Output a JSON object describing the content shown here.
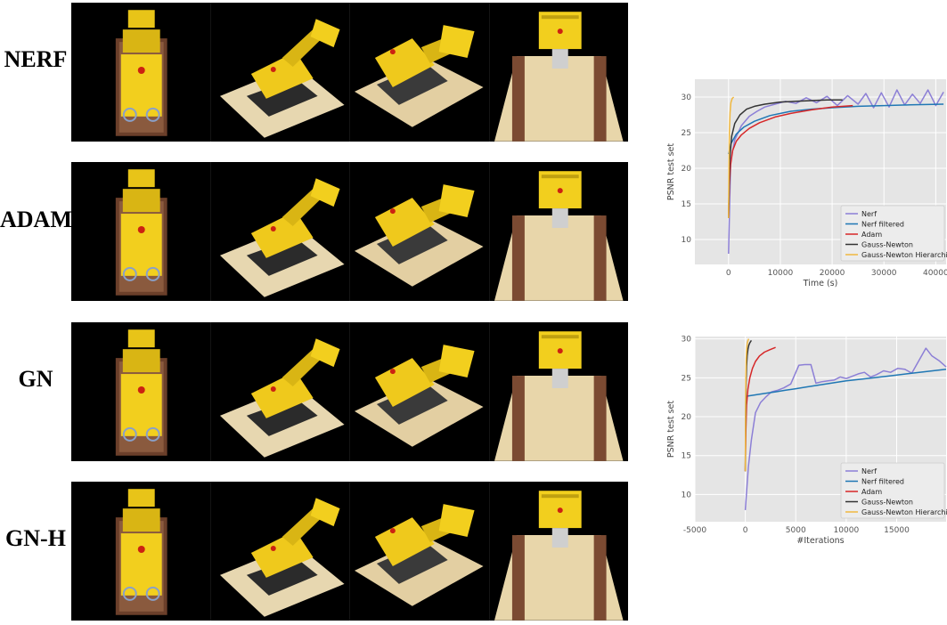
{
  "rows": [
    {
      "label": "NERF"
    },
    {
      "label": "ADAM"
    },
    {
      "label": "GN"
    },
    {
      "label": "GN-H"
    }
  ],
  "colors": {
    "nerf": "#8c7fd6",
    "nerf_filtered": "#1f77b4",
    "adam": "#d62728",
    "gauss_newton": "#333333",
    "gauss_newton_hier": "#f0b840",
    "plot_bg": "#e5e5e5"
  },
  "chart_data": [
    {
      "type": "line",
      "xlabel": "Time (s)",
      "ylabel": "PSNR test set",
      "xlim": [
        -6500,
        42000
      ],
      "ylim": [
        6.5,
        32.5
      ],
      "xticks": [
        0,
        10000,
        20000,
        30000,
        40000
      ],
      "yticks": [
        10,
        15,
        20,
        25,
        30
      ],
      "grid": true,
      "legend_position": "bottom-right",
      "series": [
        {
          "name": "Nerf",
          "color_key": "nerf",
          "x": [
            0,
            400,
            1200,
            2500,
            4000,
            5500,
            7000,
            9000,
            11000,
            13000,
            15000,
            17000,
            19000,
            21000,
            23000,
            25000,
            26500,
            28000,
            29500,
            31000,
            32500,
            34000,
            35500,
            37000,
            38500,
            40000,
            41500
          ],
          "y": [
            8,
            21,
            24,
            26,
            27.3,
            28,
            28.6,
            29,
            29.4,
            29.1,
            29.9,
            29.2,
            30.1,
            28.8,
            30.2,
            29,
            30.5,
            28.5,
            30.6,
            28.6,
            31,
            28.9,
            30.4,
            29.1,
            31,
            28.8,
            30.7
          ]
        },
        {
          "name": "Nerf filtered",
          "color_key": "nerf_filtered",
          "x": [
            0,
            500,
            1500,
            3000,
            5000,
            8000,
            12000,
            16000,
            20000,
            25000,
            30000,
            35000,
            41500
          ],
          "y": [
            22,
            23.5,
            24.8,
            25.8,
            26.6,
            27.4,
            28,
            28.3,
            28.5,
            28.7,
            28.8,
            28.9,
            29
          ]
        },
        {
          "name": "Adam",
          "color_key": "adam",
          "x": [
            0,
            150,
            400,
            800,
            1500,
            2500,
            4000,
            6000,
            9000,
            12000,
            16000,
            20000,
            24000
          ],
          "y": [
            13,
            17.5,
            20.5,
            22.5,
            23.8,
            24.7,
            25.6,
            26.4,
            27.2,
            27.7,
            28.2,
            28.6,
            28.8
          ]
        },
        {
          "name": "Gauss-Newton",
          "color_key": "gauss_newton",
          "x": [
            0,
            200,
            600,
            1200,
            2200,
            3500,
            5000,
            7000,
            10000,
            13000,
            16000,
            19000,
            22000
          ],
          "y": [
            13,
            21,
            24.5,
            26.3,
            27.5,
            28.3,
            28.7,
            29,
            29.3,
            29.4,
            29.5,
            29.6,
            29.6
          ]
        },
        {
          "name": "Gauss-Newton Hierarchical",
          "color_key": "gauss_newton_hier",
          "x": [
            0,
            80,
            180,
            300,
            450,
            700,
            1000
          ],
          "y": [
            13,
            21,
            25.5,
            27.8,
            29.2,
            29.8,
            30
          ]
        }
      ]
    },
    {
      "type": "line",
      "xlabel": "#Iterations",
      "ylabel": "PSNR test set",
      "xlim": [
        -5000,
        19900
      ],
      "ylim": [
        6.5,
        30.3
      ],
      "xticks": [
        -5000,
        0,
        5000,
        10000,
        15000
      ],
      "yticks": [
        10,
        15,
        20,
        25,
        30
      ],
      "grid": true,
      "legend_position": "bottom-right",
      "series": [
        {
          "name": "Nerf",
          "color_key": "nerf",
          "x": [
            0,
            300,
            600,
            1000,
            1500,
            2000,
            2600,
            3200,
            3800,
            4500,
            5300,
            5900,
            6500,
            7000,
            7600,
            8200,
            8800,
            9400,
            10000,
            10600,
            11200,
            11800,
            12400,
            13000,
            13700,
            14400,
            15100,
            15800,
            16500,
            17200,
            17900,
            18500,
            19200,
            19900
          ],
          "y": [
            8,
            13.5,
            17,
            20.5,
            21.8,
            22.5,
            23.2,
            23.4,
            23.7,
            24.2,
            26.6,
            26.7,
            26.7,
            24.3,
            24.5,
            24.6,
            24.7,
            25.1,
            24.9,
            25.2,
            25.5,
            25.7,
            25.1,
            25.4,
            25.9,
            25.7,
            26.2,
            26.1,
            25.6,
            27.2,
            28.8,
            27.8,
            27.2,
            26.4
          ]
        },
        {
          "name": "Nerf filtered",
          "color_key": "nerf_filtered",
          "x": [
            0,
            1000,
            2000,
            3000,
            4000,
            5000,
            6000,
            8000,
            10000,
            12000,
            14000,
            16000,
            18000,
            19900
          ],
          "y": [
            22.6,
            22.8,
            23,
            23.2,
            23.4,
            23.6,
            23.8,
            24.2,
            24.6,
            24.9,
            25.2,
            25.5,
            25.8,
            26.1
          ]
        },
        {
          "name": "Adam",
          "color_key": "adam",
          "x": [
            0,
            50,
            120,
            250,
            450,
            700,
            1000,
            1400,
            1900,
            2400,
            3000
          ],
          "y": [
            13,
            18,
            21.5,
            23.5,
            25,
            26.2,
            27.1,
            27.8,
            28.3,
            28.6,
            28.9
          ]
        },
        {
          "name": "Gauss-Newton",
          "color_key": "gauss_newton",
          "x": [
            0,
            30,
            70,
            120,
            180,
            260,
            350,
            450,
            600
          ],
          "y": [
            13,
            20,
            24,
            26.5,
            27.8,
            28.7,
            29.2,
            29.5,
            29.8
          ]
        },
        {
          "name": "Gauss-Newton Hierarchical",
          "color_key": "gauss_newton_hier",
          "x": [
            0,
            20,
            50,
            90,
            140,
            200,
            260,
            330
          ],
          "y": [
            13,
            21,
            25,
            27.5,
            28.8,
            29.5,
            29.8,
            30
          ]
        }
      ]
    }
  ]
}
